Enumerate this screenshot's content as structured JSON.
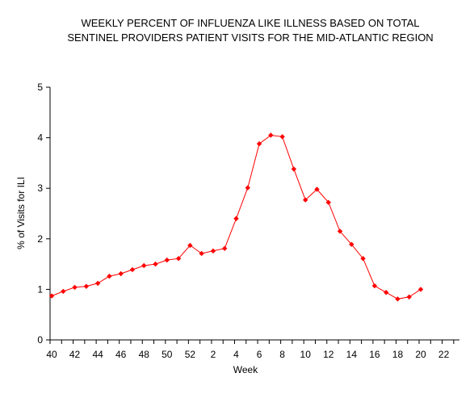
{
  "chart_data": {
    "type": "line",
    "title_lines": [
      "WEEKLY PERCENT OF INFLUENZA LIKE ILLNESS BASED ON TOTAL",
      "SENTINEL PROVIDERS PATIENT VISITS FOR THE MID-ATLANTIC  REGION"
    ],
    "xlabel": "Week",
    "ylabel": "% of Visits for ILI",
    "ylim": [
      0,
      5
    ],
    "y_ticks": [
      "0",
      "1",
      "2",
      "3",
      "4",
      "5"
    ],
    "x_tick_labels": [
      "40",
      "42",
      "44",
      "46",
      "48",
      "50",
      "52",
      "2",
      "4",
      "6",
      "8",
      "10",
      "12",
      "14",
      "16",
      "18",
      "20",
      "22"
    ],
    "weeks": [
      "40",
      "41",
      "42",
      "43",
      "44",
      "45",
      "46",
      "47",
      "48",
      "49",
      "50",
      "51",
      "52",
      "1",
      "2",
      "3",
      "4",
      "5",
      "6",
      "7",
      "8",
      "9",
      "10",
      "11",
      "12",
      "13",
      "14",
      "15",
      "16",
      "17",
      "18",
      "19",
      "20"
    ],
    "values": [
      0.87,
      0.96,
      1.04,
      1.06,
      1.12,
      1.26,
      1.31,
      1.39,
      1.47,
      1.5,
      1.58,
      1.61,
      1.87,
      1.71,
      1.76,
      1.81,
      2.4,
      3.01,
      3.88,
      4.05,
      4.02,
      3.38,
      2.77,
      2.98,
      2.72,
      2.15,
      1.89,
      1.61,
      1.07,
      0.94,
      0.81,
      0.85,
      1.0
    ],
    "series_color": "#ff0000",
    "grid": false,
    "legend": "none"
  }
}
